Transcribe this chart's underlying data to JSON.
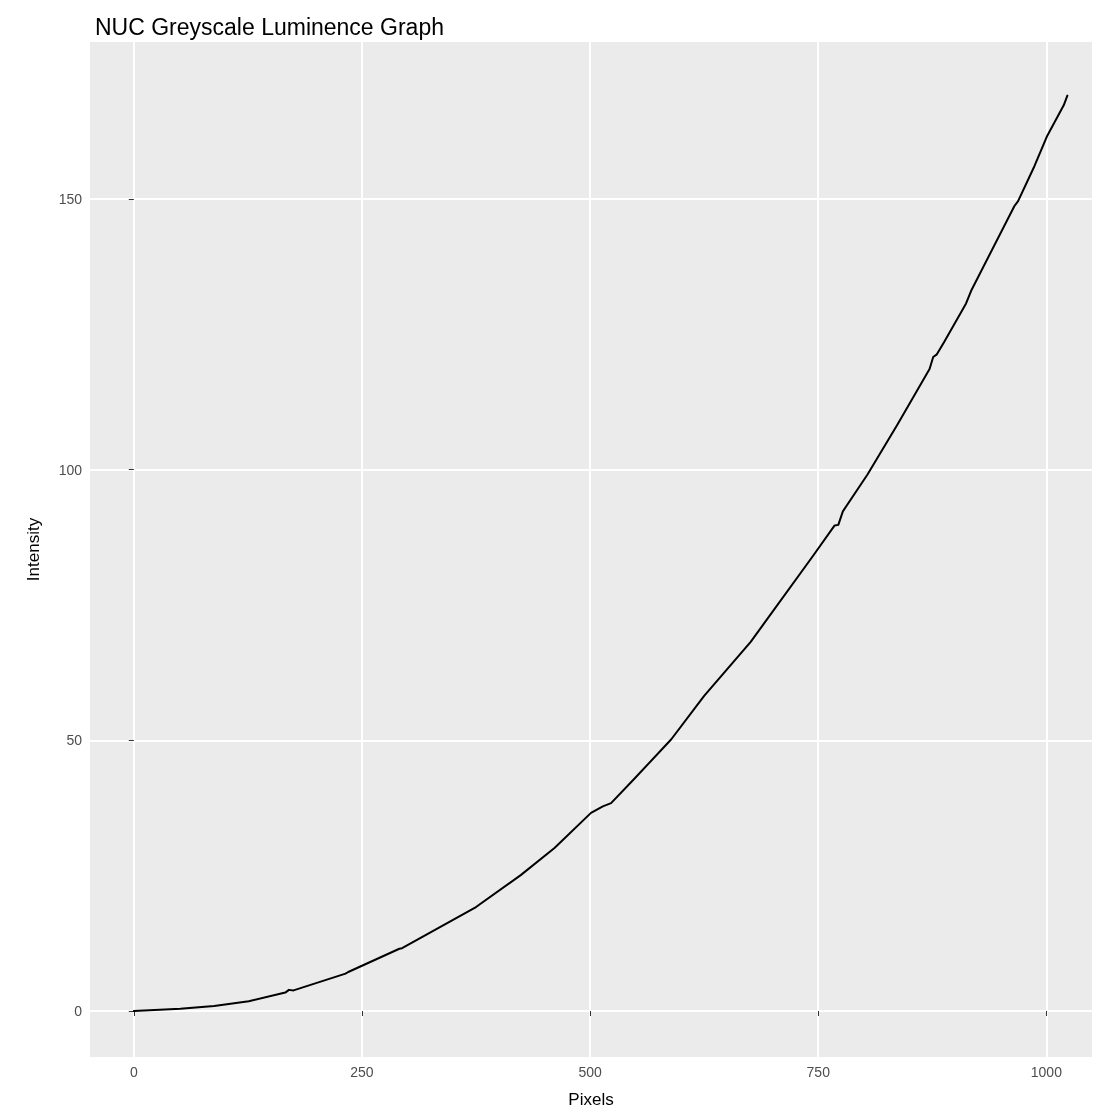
{
  "chart_data": {
    "type": "line",
    "title": "NUC Greyscale Luminence Graph",
    "xlabel": "Pixels",
    "ylabel": "Intensity",
    "xlim": [
      -48,
      1050
    ],
    "ylim": [
      -8.5,
      179
    ],
    "xticks": [
      0,
      250,
      500,
      750,
      1000
    ],
    "yticks": [
      0,
      50,
      100,
      150
    ],
    "grid": true,
    "marker": "none",
    "line_style": "solid",
    "series": [
      {
        "color": "#000000",
        "x": [
          0,
          51,
          88,
          126,
          166,
          170,
          175,
          232,
          235,
          291,
          294,
          375,
          424,
          461,
          501,
          514,
          523,
          548,
          589,
          625,
          676,
          744,
          768,
          772,
          777,
          804,
          837,
          872,
          876,
          880,
          888,
          912,
          918,
          965,
          969,
          987,
          1001,
          1019,
          1023
        ],
        "values": [
          0,
          0.4,
          0.9,
          1.8,
          3.4,
          3.9,
          3.8,
          6.9,
          7.2,
          11.5,
          11.6,
          19.2,
          25.1,
          30.1,
          36.6,
          37.8,
          38.4,
          42.8,
          50.2,
          58.2,
          68.2,
          84.0,
          89.7,
          89.8,
          92.3,
          99.1,
          108.4,
          118.6,
          120.8,
          121.3,
          123.6,
          130.7,
          133.2,
          148.7,
          149.6,
          156.1,
          161.7,
          167.3,
          169.1
        ]
      }
    ]
  }
}
